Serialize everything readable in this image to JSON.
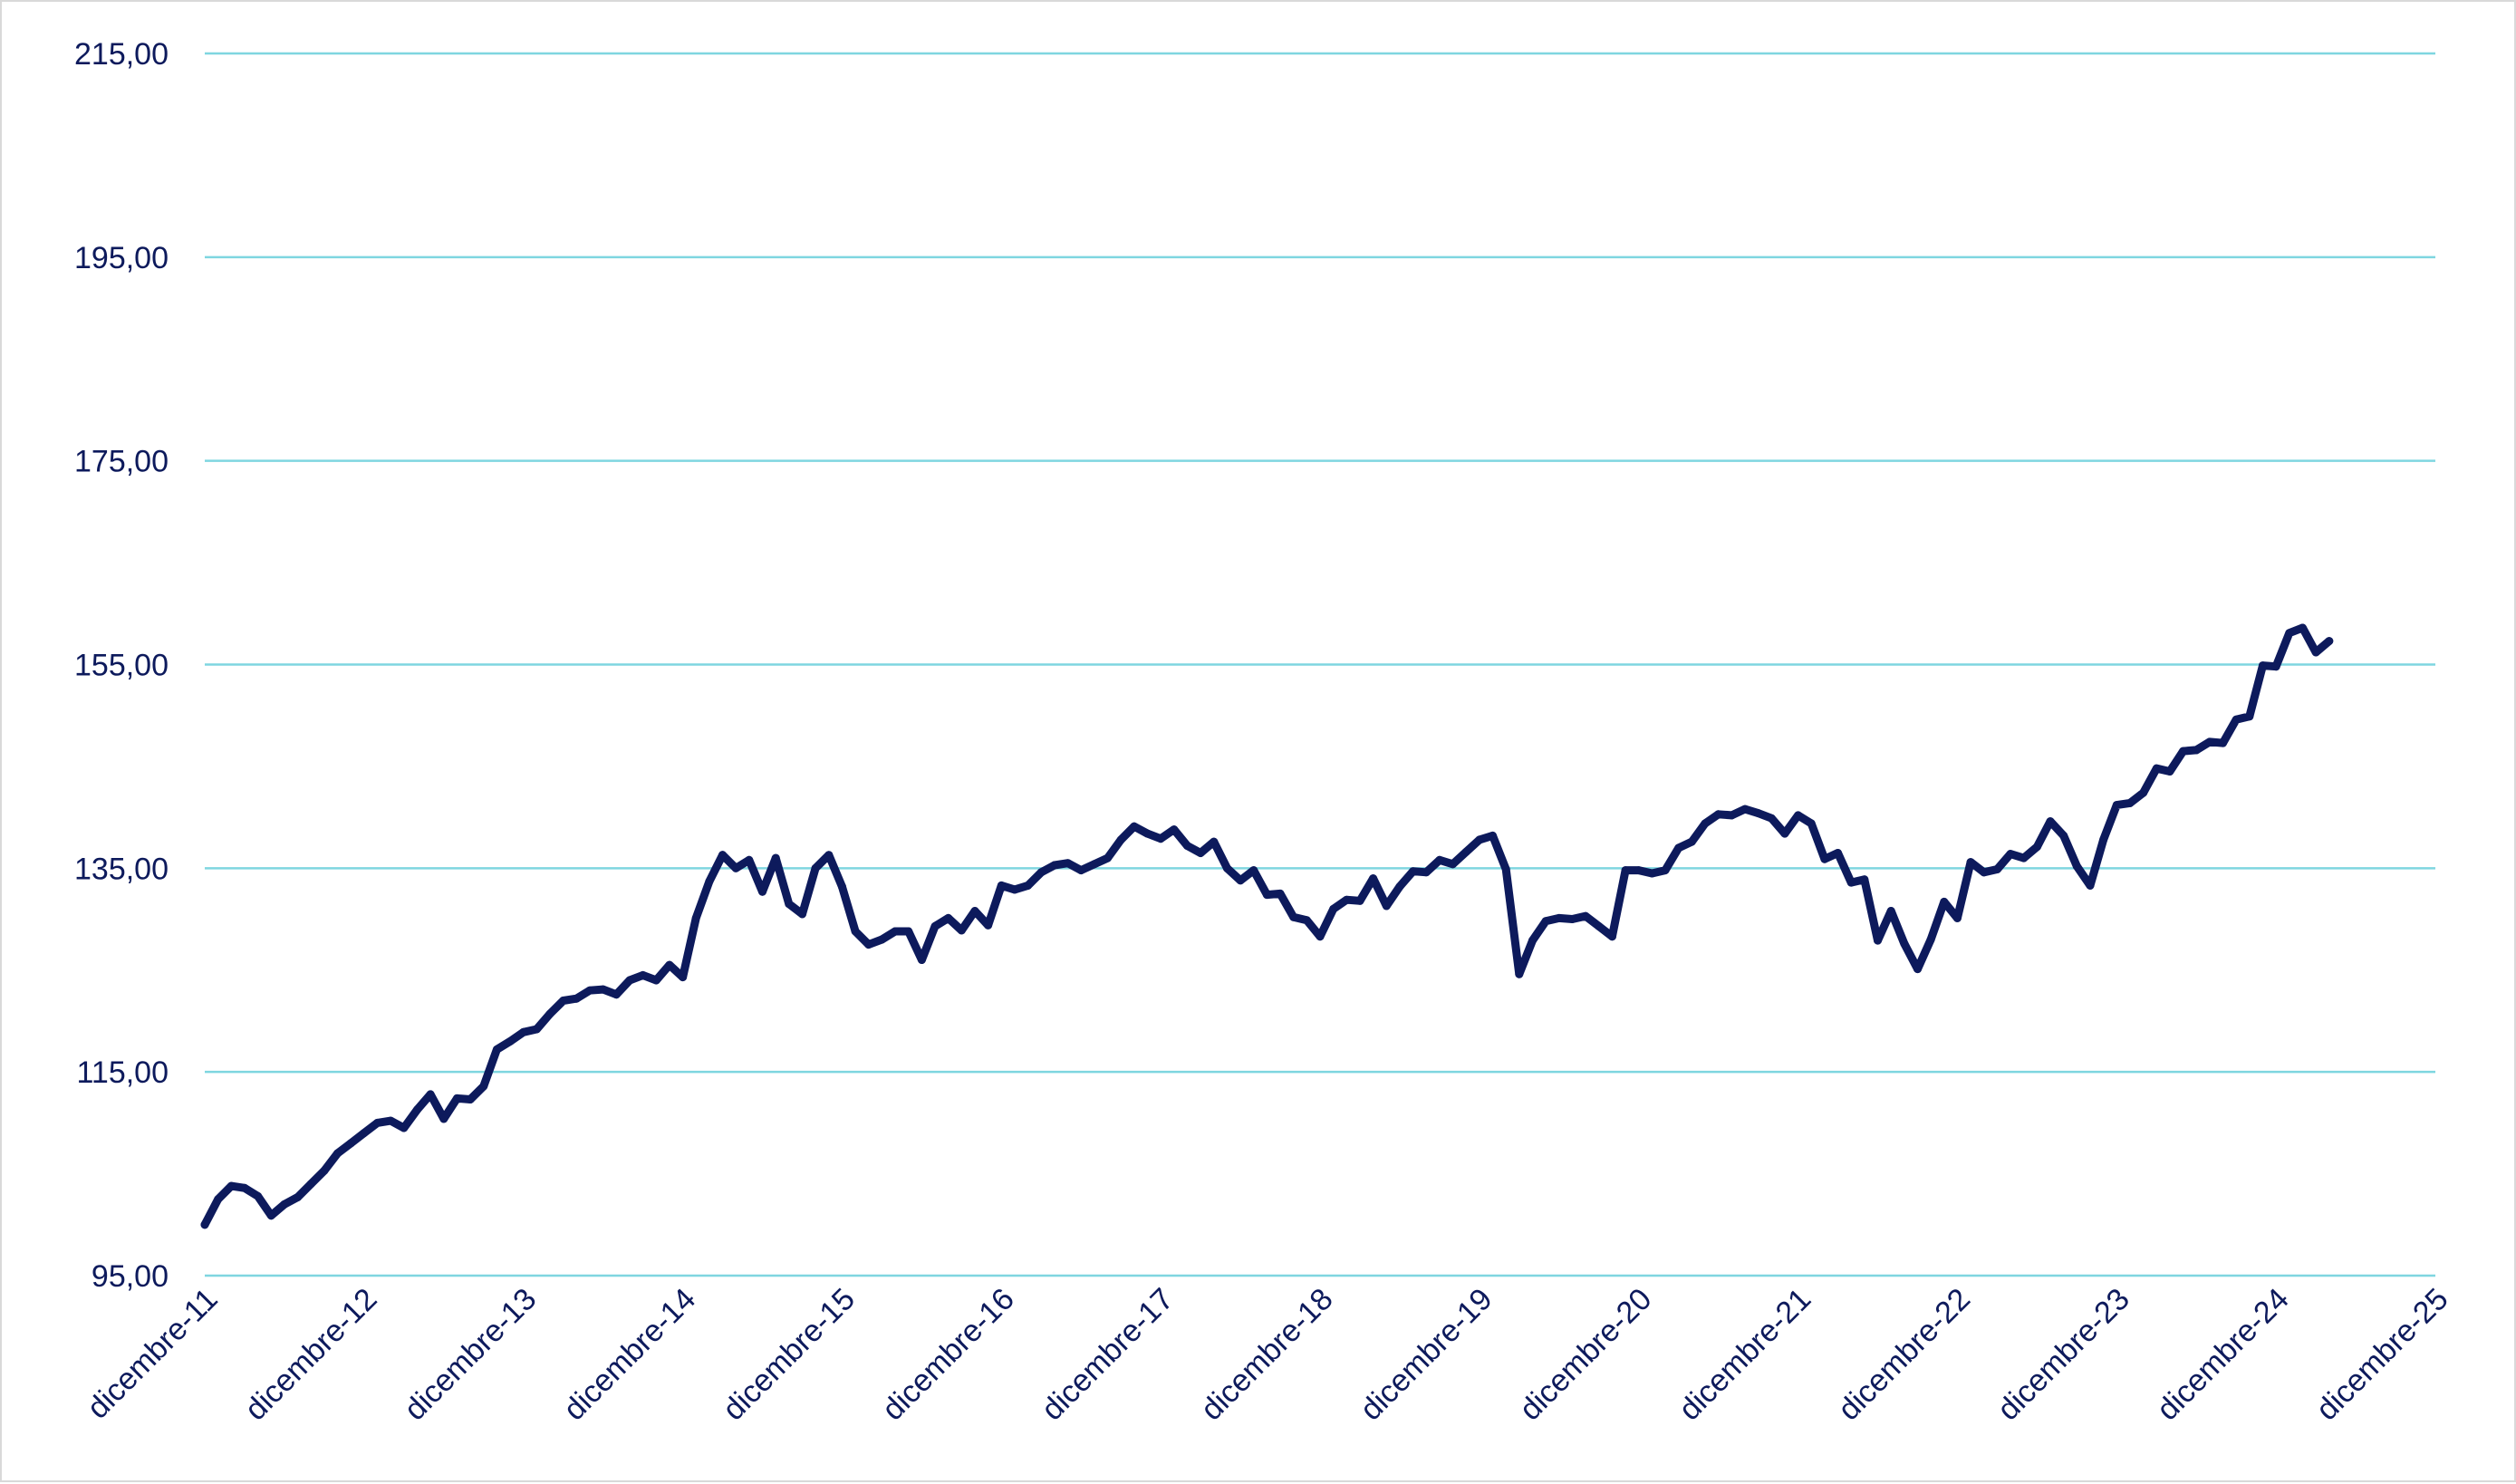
{
  "chart_data": {
    "type": "line",
    "title": "",
    "xlabel": "",
    "ylabel": "",
    "ylim": [
      95,
      215
    ],
    "y_ticks": [
      "95,00",
      "115,00",
      "135,00",
      "155,00",
      "175,00",
      "195,00",
      "215,00"
    ],
    "x_ticks": [
      "dicembre-11",
      "dicembre-12",
      "dicembre-13",
      "dicembre-14",
      "dicembre-15",
      "dicembre-16",
      "dicembre-17",
      "dicembre-18",
      "dicembre-19",
      "dicembre-20",
      "dicembre-21",
      "dicembre-22",
      "dicembre-23",
      "dicembre-24",
      "dicembre-25"
    ],
    "x_range": [
      "2011-12",
      "2025-12"
    ],
    "grid": "horizontal",
    "colors": {
      "line": "#0d1a5c",
      "grid": "#7fd6e0",
      "text": "#0d1a5c"
    },
    "series": [
      {
        "values": [
          [
            "2011-12",
            100.0
          ],
          [
            "2012-01",
            102.5
          ],
          [
            "2012-02",
            103.8
          ],
          [
            "2012-03",
            103.6
          ],
          [
            "2012-04",
            102.8
          ],
          [
            "2012-05",
            100.9
          ],
          [
            "2012-06",
            102.0
          ],
          [
            "2012-07",
            102.7
          ],
          [
            "2012-08",
            104.0
          ],
          [
            "2012-09",
            105.3
          ],
          [
            "2012-10",
            107.0
          ],
          [
            "2012-11",
            108.0
          ],
          [
            "2012-12",
            109.0
          ],
          [
            "2013-01",
            110.0
          ],
          [
            "2013-02",
            110.2
          ],
          [
            "2013-03",
            109.5
          ],
          [
            "2013-04",
            111.3
          ],
          [
            "2013-05",
            112.8
          ],
          [
            "2013-06",
            110.4
          ],
          [
            "2013-07",
            112.4
          ],
          [
            "2013-08",
            112.3
          ],
          [
            "2013-09",
            113.6
          ],
          [
            "2013-10",
            117.2
          ],
          [
            "2013-11",
            118.0
          ],
          [
            "2013-12",
            118.9
          ],
          [
            "2014-01",
            119.2
          ],
          [
            "2014-02",
            120.7
          ],
          [
            "2014-03",
            122.0
          ],
          [
            "2014-04",
            122.2
          ],
          [
            "2014-05",
            123.0
          ],
          [
            "2014-06",
            123.1
          ],
          [
            "2014-07",
            122.6
          ],
          [
            "2014-08",
            124.0
          ],
          [
            "2014-09",
            124.5
          ],
          [
            "2014-10",
            124.0
          ],
          [
            "2014-11",
            125.5
          ],
          [
            "2014-12",
            124.3
          ],
          [
            "2015-01",
            130.1
          ],
          [
            "2015-02",
            133.7
          ],
          [
            "2015-03",
            136.3
          ],
          [
            "2015-04",
            135.0
          ],
          [
            "2015-05",
            135.8
          ],
          [
            "2015-06",
            132.7
          ],
          [
            "2015-07",
            136.0
          ],
          [
            "2015-08",
            131.5
          ],
          [
            "2015-09",
            130.5
          ],
          [
            "2015-10",
            135.0
          ],
          [
            "2015-11",
            136.3
          ],
          [
            "2015-12",
            133.2
          ],
          [
            "2016-01",
            128.8
          ],
          [
            "2016-02",
            127.5
          ],
          [
            "2016-03",
            128.0
          ],
          [
            "2016-04",
            128.8
          ],
          [
            "2016-05",
            128.8
          ],
          [
            "2016-06",
            126.0
          ],
          [
            "2016-07",
            129.3
          ],
          [
            "2016-08",
            130.1
          ],
          [
            "2016-09",
            128.9
          ],
          [
            "2016-10",
            130.8
          ],
          [
            "2016-11",
            129.4
          ],
          [
            "2016-12",
            133.3
          ],
          [
            "2017-01",
            132.9
          ],
          [
            "2017-02",
            133.3
          ],
          [
            "2017-03",
            134.6
          ],
          [
            "2017-04",
            135.3
          ],
          [
            "2017-05",
            135.5
          ],
          [
            "2017-06",
            134.8
          ],
          [
            "2017-07",
            135.4
          ],
          [
            "2017-08",
            136.0
          ],
          [
            "2017-09",
            137.8
          ],
          [
            "2017-10",
            139.1
          ],
          [
            "2017-11",
            138.4
          ],
          [
            "2017-12",
            137.9
          ],
          [
            "2018-01",
            138.8
          ],
          [
            "2018-02",
            137.2
          ],
          [
            "2018-03",
            136.5
          ],
          [
            "2018-04",
            137.6
          ],
          [
            "2018-05",
            135.0
          ],
          [
            "2018-06",
            133.8
          ],
          [
            "2018-07",
            134.8
          ],
          [
            "2018-08",
            132.4
          ],
          [
            "2018-09",
            132.5
          ],
          [
            "2018-10",
            130.2
          ],
          [
            "2018-11",
            129.9
          ],
          [
            "2018-12",
            128.3
          ],
          [
            "2019-01",
            131.0
          ],
          [
            "2019-02",
            131.9
          ],
          [
            "2019-03",
            131.8
          ],
          [
            "2019-04",
            134.0
          ],
          [
            "2019-05",
            131.3
          ],
          [
            "2019-06",
            133.2
          ],
          [
            "2019-07",
            134.7
          ],
          [
            "2019-08",
            134.6
          ],
          [
            "2019-09",
            135.8
          ],
          [
            "2019-10",
            135.4
          ],
          [
            "2019-11",
            136.6
          ],
          [
            "2019-12",
            137.8
          ],
          [
            "2020-01",
            138.2
          ],
          [
            "2020-02",
            134.9
          ],
          [
            "2020-03",
            124.6
          ],
          [
            "2020-04",
            127.9
          ],
          [
            "2020-05",
            129.8
          ],
          [
            "2020-06",
            130.1
          ],
          [
            "2020-07",
            130.0
          ],
          [
            "2020-08",
            130.3
          ],
          [
            "2020-09",
            129.3
          ],
          [
            "2020-10",
            128.3
          ],
          [
            "2020-11",
            134.8
          ],
          [
            "2020-12",
            134.8
          ],
          [
            "2021-01",
            134.5
          ],
          [
            "2021-02",
            134.8
          ],
          [
            "2021-03",
            137.0
          ],
          [
            "2021-04",
            137.6
          ],
          [
            "2021-05",
            139.4
          ],
          [
            "2021-06",
            140.3
          ],
          [
            "2021-07",
            140.2
          ],
          [
            "2021-08",
            140.8
          ],
          [
            "2021-09",
            140.4
          ],
          [
            "2021-10",
            139.9
          ],
          [
            "2021-11",
            138.4
          ],
          [
            "2021-12",
            140.2
          ],
          [
            "2022-01",
            139.4
          ],
          [
            "2022-02",
            135.9
          ],
          [
            "2022-03",
            136.5
          ],
          [
            "2022-04",
            133.6
          ],
          [
            "2022-05",
            133.9
          ],
          [
            "2022-06",
            127.9
          ],
          [
            "2022-07",
            130.8
          ],
          [
            "2022-08",
            127.6
          ],
          [
            "2022-09",
            125.1
          ],
          [
            "2022-10",
            128.0
          ],
          [
            "2022-11",
            131.7
          ],
          [
            "2022-12",
            130.1
          ],
          [
            "2023-01",
            135.6
          ],
          [
            "2023-02",
            134.6
          ],
          [
            "2023-03",
            134.9
          ],
          [
            "2023-04",
            136.4
          ],
          [
            "2023-05",
            136.0
          ],
          [
            "2023-06",
            137.1
          ],
          [
            "2023-07",
            139.6
          ],
          [
            "2023-08",
            138.2
          ],
          [
            "2023-09",
            135.2
          ],
          [
            "2023-10",
            133.3
          ],
          [
            "2023-11",
            137.8
          ],
          [
            "2023-12",
            141.2
          ],
          [
            "2024-01",
            141.4
          ],
          [
            "2024-02",
            142.4
          ],
          [
            "2024-03",
            144.8
          ],
          [
            "2024-04",
            144.5
          ],
          [
            "2024-05",
            146.5
          ],
          [
            "2024-06",
            146.6
          ],
          [
            "2024-07",
            147.4
          ],
          [
            "2024-08",
            147.3
          ],
          [
            "2024-09",
            149.6
          ],
          [
            "2024-10",
            149.9
          ],
          [
            "2024-11",
            154.9
          ],
          [
            "2024-12",
            154.8
          ],
          [
            "2025-01",
            158.1
          ],
          [
            "2025-02",
            158.6
          ],
          [
            "2025-03",
            156.2
          ],
          [
            "2025-04",
            157.3
          ]
        ]
      }
    ]
  }
}
